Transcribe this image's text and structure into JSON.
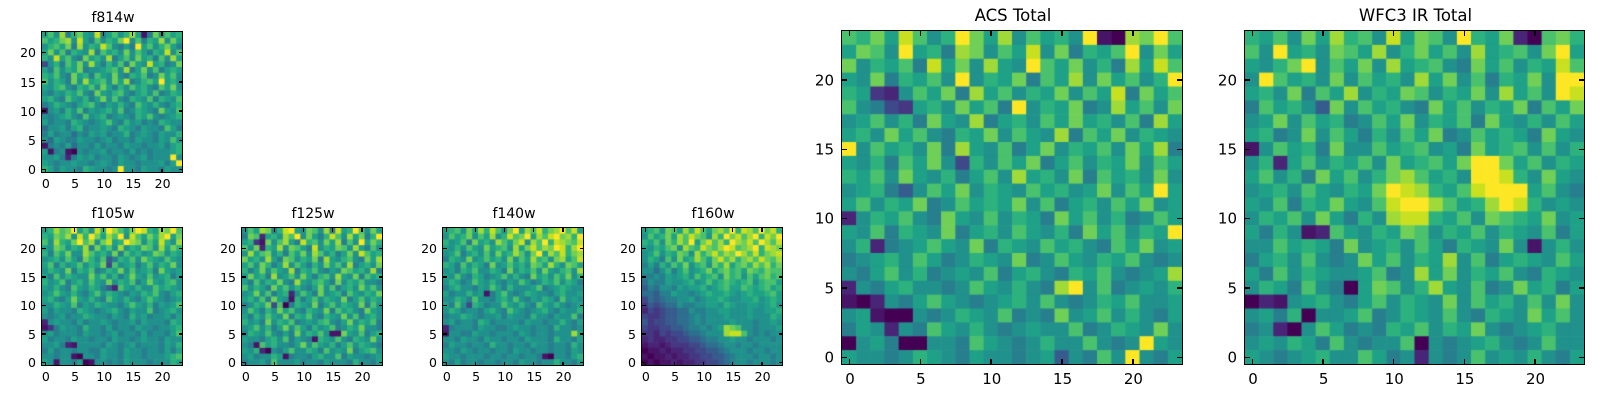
{
  "figure": {
    "background_color": "#ffffff",
    "frame_color": "#000000",
    "text_color": "#000000"
  },
  "palette_viridis_16": [
    "#440154",
    "#481467",
    "#482576",
    "#453781",
    "#3e4989",
    "#365c8d",
    "#2e6e8e",
    "#277f8e",
    "#21918c",
    "#1fa187",
    "#2db27d",
    "#4ac16d",
    "#70cf57",
    "#a0da39",
    "#c8e020",
    "#fde725"
  ],
  "chart_data": [
    {
      "id": "f814w",
      "type": "heatmap",
      "title": "f814w",
      "size": "small",
      "colormap": "viridis",
      "grid": [
        24,
        24
      ],
      "x_ticks": [
        0,
        5,
        10,
        15,
        20
      ],
      "y_ticks": [
        0,
        5,
        10,
        15,
        20
      ],
      "xlim": [
        0,
        24
      ],
      "ylim": [
        0,
        24
      ],
      "encoding": "hex16-rows-top-to-bottom",
      "rows": [
        "9b8d7ac98e79b8ad917c8b9a",
        "b9acd8e97b8a9cf8b7a9d8c9",
        "8ab9c7d8a9eb8797f9b8ac97",
        "9c8b7a98d7b9a8c8b97a9e8b",
        "a8e9b87c9a8d79b8c9a7b8d9",
        "48a7b9c8d97a8b7c98e9a78c",
        "97b8a9c7889ab8d79c8b79a9",
        "a9b87c9a7b98c87a9b78c9b8",
        "b8a97c8d9ab8c9d78ab9f9a8",
        "98ab87a9b8c97a8b9a87b9c8",
        "8798a9b87c98ab879a8b78a9",
        "9a87b98a79c8b87a98b7a98b",
        "78a9879ab8798a87b98a879a",
        "1897a8b7989a8b78a987c98b",
        "8789a87b89a78987a9b8789a",
        "97887a98789b87a89787a988",
        "688979a788987a9879887b97",
        "79788687989788a78987988a",
        "8698779887897887988798b8",
        "17879688797887988788979a",
        "91781087889788797878889a",
        "8897279897887987897888f8",
        "98788988789879887888979f",
        "a979887a98878f8879887988"
      ]
    },
    {
      "id": "f105w",
      "type": "heatmap",
      "title": "f105w",
      "size": "small",
      "colormap": "viridis",
      "grid": [
        24,
        24
      ],
      "x_ticks": [
        0,
        5,
        10,
        15,
        20
      ],
      "y_ticks": [
        0,
        5,
        10,
        15,
        20
      ],
      "xlim": [
        0,
        24
      ],
      "ylim": [
        0,
        24
      ],
      "encoding": "hex16-rows-top-to-bottom",
      "rows": [
        "9adbcf9b8eafdb9cfea9dcfb",
        "a9cbd8eafc9dbf8eb9cadf9c",
        "b8da9cfbd8ce9afdc8b9ea8d",
        "98cb8a9d7c9b8d8a9cb8d9ca",
        "a7b9c88db9a8c7b9a89cb8a9",
        "89a8b97ca8b57a9b8ca98b98",
        "9b7a89b8a9c4b89a79b8a9c8",
        "8a98c7a9b78a9c8b89a7c989",
        "97b8a988c9b8a79c98b89a79",
        "a89b79a8b98c8a9b79c98ab8",
        "98a87b98a9752b98a88b9a98",
        "89b98a879b8a98798a9b879a",
        "9a879c98a87b98a879b98789",
        "88a98b798a98879b98a7989b",
        "979887a98789a87988b789a8",
        "8789788a9887987a89788979",
        "2898879788987889798887a9",
        "1379887a887978879887889a",
        "89788879887897887978879b",
        "978879887887988789887988",
        "88972188887987897888798a",
        "797887887798879887887979",
        "8878810887988798878889ab",
        "9818879018878798887888a9"
      ]
    },
    {
      "id": "f125w",
      "type": "heatmap",
      "title": "f125w",
      "size": "small",
      "colormap": "viridis",
      "grid": [
        24,
        24
      ],
      "x_ticks": [
        0,
        5,
        10,
        15,
        20
      ],
      "y_ticks": [
        0,
        5,
        10,
        15,
        20
      ],
      "xlim": [
        0,
        24
      ],
      "ylim": [
        0,
        24
      ],
      "encoding": "hex16-rows-top-to-bottom",
      "rows": [
        "8b9dc7aef98cb8d7e9afb8c9",
        "7cb29a8dbf8c97aeb8d9c7af",
        "9a31c8bd97eab8c9d7b8f9ca",
        "b8c2a9d8cb97e8a9cb8d97b8",
        "8d9bc8a7b9c8db8a79c8eb9a",
        "c9a8d97cb8a9c7d98ab87c9d",
        "9b8ca79d8b97a8c9b8d79a8c",
        "a79c8b98d7a9b8798cb9a8d7",
        "8c9a7d89b8c97ab8d98c7b9a",
        "97b8a9c87d98ab97c8a9b887",
        "b8a97c9b8a879c8b79a8c9b8",
        "89c8b79a28b97c89a7b98a9c",
        "9a8b7c981a79b8a98c79b8a9",
        "78a9c4b07a98c79b8a98c7b8",
        "8b97a8c9b87a98c7b9a87c98",
        "97a8b98c7a9b87a98c8b79a8",
        "a897c8a9b7898ab879c8a9b7",
        "89b8a79c8b97a89b78a9c887",
        "7a98b8797c8a9b811c98b79a",
        "98879a8b79871a98b87a98c8",
        "871b9a8879c8b98a79b8a987",
        "98a20879b88a97b898c79ab8",
        "89788a9178879a88b7988789",
        "78897b8889788798887a8879"
      ]
    },
    {
      "id": "f140w",
      "type": "heatmap",
      "title": "f140w",
      "size": "small",
      "colormap": "viridis",
      "grid": [
        24,
        24
      ],
      "x_ticks": [
        0,
        5,
        10,
        15,
        20
      ],
      "y_ticks": [
        0,
        5,
        10,
        15,
        20
      ],
      "xlim": [
        0,
        24
      ],
      "ylim": [
        0,
        24
      ],
      "encoding": "hex16-rows-top-to-bottom",
      "rows": [
        "9ab8c9daeb8cf9dbeacdfbe9",
        "8b9ac8b9d8aebcf9dbefcdaf",
        "a89b7c9a8db9ce8dbfaedcbe",
        "98a8b98c9ab8d9cebdcfeadf",
        "89b79a8b8c9adb8cf9dbeacd",
        "7a98c89b9a8c8b9dab8cd9be",
        "a97b8a97c89b9a8cb9da8cb9",
        "897a9b88a97c8a9b8c98ab8d",
        "98b87a9789b8a87c9a8b9c8a",
        "8a978b98a8798b978a9b8a97",
        "79a88798b97a8889b789a988",
        "9788a89179b878a98879a889",
        "88a97b8879a8b8798a97b898",
        "97b84a9788b98a87b98a8789",
        "8a978879a87b98789a87988a",
        "788a98788979887a887988b7",
        "897887a9788887988788a879",
        "2788879887789887887a8878",
        "1887798878887987887888d9",
        "8879887988788798887a8879",
        "79887887a8878879887887a8",
        "887987887887988788788798",
        "98878887887887887108879a",
        "8797887887887988788a8879"
      ]
    },
    {
      "id": "f160w",
      "type": "heatmap",
      "title": "f160w",
      "size": "small",
      "colormap": "viridis",
      "grid": [
        24,
        24
      ],
      "x_ticks": [
        0,
        5,
        10,
        15,
        20
      ],
      "y_ticks": [
        0,
        5,
        10,
        15,
        20
      ],
      "xlim": [
        0,
        24
      ],
      "ylim": [
        0,
        24
      ],
      "encoding": "hex16-rows-top-to-bottom",
      "rows": [
        "9ab8cb9daeb9cdbfaedbfcea",
        "8b9ac9dbecb8dafcebdfaecf",
        "a9b8cadbf9cebdafdcebfdbe",
        "98a9bc8dbaecbdfebcdfaedc",
        "89b8a9cb8dacebdcfdbeacde",
        "8a97b8c9adb9cebdacdbecbd",
        "797a8b9c8ab8cad9bcadbdac",
        "8868a79b89ac9bcab9cbacbb",
        "7787989a8b9ab8cab8b9bcab",
        "68779889a89b9aba9ab8abb9",
        "5768879899a89ab99ba9ab9a",
        "66577988789a99a989a99ab9",
        "4656778897899a98899a89a9",
        "35456687788998a9889989a8",
        "24345566877889988898899a",
        "4334556678788898889888a9",
        "534455667878888988878898",
        "43344556778789dcb8878889",
        "33243445667888deeb878788",
        "232233445567788988788878",
        "122123334456678878878888",
        "011212233445567888788788",
        "101121223344556788878878",
        "010112122334456788788878"
      ]
    },
    {
      "id": "acs_total",
      "type": "heatmap",
      "title": "ACS Total",
      "size": "large",
      "colormap": "viridis",
      "grid": [
        24,
        24
      ],
      "x_ticks": [
        0,
        5,
        10,
        15,
        20
      ],
      "y_ticks": [
        0,
        5,
        10,
        15,
        20
      ],
      "xlim": [
        0,
        24
      ],
      "ylim": [
        0,
        24
      ],
      "encoding": "hex16-rows-top-to-bottom",
      "rows": [
        "bac9eb8afc9d8b9a8f10dcfb",
        "9cb8f9a7dc8b9e8c7a9bf8c9",
        "c8a9b7e9c8d98fb9c8a7d9eb",
        "98c7a9b8f8a9c7b9d8c9b8af",
        "a9328b9c7d9b8a9c8b9e7c9b",
        "b87439a8c9b7f8a9c78d9b8c",
        "89b8a7c98d79a8b9c9a8b7d9",
        "9a8c9b87a9c8b98d7b9c8a98",
        "f8b9a8c7d98b79c8a9b8c9d7",
        "98a7b9c84a8b9c79b8a9c8b9",
        "a9b8c98a79b8d9a8c7b9a8c8",
        "89a758b9c8a98b9a89c8b9f9",
        "9b8a9c78b9a9c8b79a8b9c89",
        "28a9b87c98b8a97c9b8a78b9",
        "98b7a98c79a8b98a7c9b8a9f",
        "8a2789b98c7a98b9a87b9c89",
        "789a8b978a98c78b98a9b878",
        "879b8a7898b79a87a9b8789d",
        "2879a8878b98a87df8b7898a",
        "102879b98789a8b878a9b889",
        "89100878a98b787c89b8a879",
        "798287b98a878988b78a98c8",
        "089700887b9878a88b878f98",
        "98878a987988789587b8f879"
      ]
    },
    {
      "id": "wfc3_ir_total",
      "type": "heatmap",
      "title": "WFC3 IR Total",
      "size": "large",
      "colormap": "viridis",
      "grid": [
        24,
        24
      ],
      "x_ticks": [
        0,
        5,
        10,
        15,
        20
      ],
      "y_ticks": [
        0,
        5,
        10,
        15,
        20
      ],
      "xlim": [
        0,
        24
      ],
      "ylim": [
        0,
        24
      ],
      "encoding": "hex16-rows-top-to-bottom",
      "rows": [
        "a9b8c9dab8e9cb8fa9c20bca",
        "b8f9a8cb9d8ac9b8d9ab8cf9",
        "98acf8b9c8d9ab87c9b8a9eb",
        "8fb9a8c8b9a8d9c8b7a9c8ff",
        "9a8c7b9d8a9cb8a9c8d9b8fe",
        "7b9a85c8b9a87c9b8a9c7b9c",
        "89c8b9a78b9c8a9b7c98a8b9",
        "9a78c8b97a8b9c78b9a97c98",
        "18b9a7c88b9ab897c9ab8b8a",
        "8a29b8a9b8c9ab9cffc9b8a9",
        "9b8a7c9b8acdb9a8ffea8c98",
        "89a8b98a9cfeda9befff9b87",
        "98b7a9c98beffdb9adfea898",
        "8a9b8c97a8deea9b8cba9c89",
        "97a812b98a9cb8a9b8a98b79",
        "88b9a97c89a8b97a98c818a8",
        "79a8b878c9b8a9d8b79a98b9",
        "97b8a9889b78d9c8a9b87a98",
        "8a97b8709cb8ad98b78c9a79",
        "02189a879b8a98c8b9a8b8c8",
        "897a0889b78a98b87a98c9b8",
        "78208b9787a9b8a9c8789a88",
        "898a97b8788b08789a878b88",
        "98789a88b9782878b898a879"
      ]
    }
  ]
}
